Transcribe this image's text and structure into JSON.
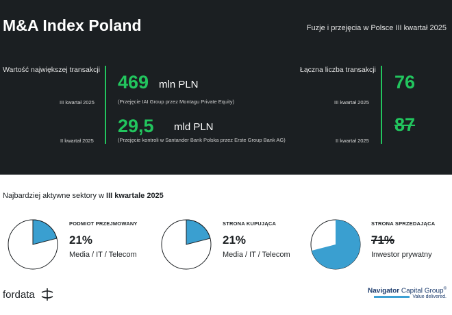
{
  "header": {
    "title": "M&A Index Poland",
    "subtitle": "Fuzje i przejęcia w Polsce III kwartał 2025"
  },
  "largest_transaction": {
    "label": "Wartość największej transakcji",
    "rows": [
      {
        "period": "III kwartał 2025",
        "value": "469",
        "unit": "mln PLN",
        "note": "(Przejęcie IAI Group przez Montagu Private Equity)"
      },
      {
        "period": "II kwartał 2025",
        "value": "29,5",
        "unit": "mld PLN",
        "note": "(Przejęcie kontroli w Santander Bank Polska przez Erste Group Bank AG)"
      }
    ]
  },
  "transaction_count": {
    "label": "Łączna liczba transakcji",
    "rows": [
      {
        "period": "III kwartał 2025",
        "value": "76"
      },
      {
        "period": "II kwartał 2025",
        "value": "87"
      }
    ]
  },
  "sectors": {
    "title_prefix": "Najbardziej aktywne sektory w ",
    "title_bold": "III kwartale 2025",
    "items": [
      {
        "label": "PODMIOT PRZEJMOWANY",
        "percent": "21%",
        "share": 0.21,
        "sector": "Media / IT / Telecom",
        "accent": "#3a9fd0"
      },
      {
        "label": "STRONA KUPUJĄCA",
        "percent": "21%",
        "share": 0.21,
        "sector": "Media / IT / Telecom",
        "accent": "#3a9fd0"
      },
      {
        "label": "STRONA SPRZEDAJĄCA",
        "percent": "71%",
        "share": 0.71,
        "sector": "Inwestor prywatny",
        "accent": "#3a9fd0"
      }
    ]
  },
  "footer": {
    "fordata": "fordata",
    "navigator_bold": "Navigator",
    "navigator_rest": " Capital Group",
    "navigator_mark": "®",
    "navigator_tagline": "Value delivered."
  },
  "colors": {
    "dark_bg": "#1b1f22",
    "green": "#22c55e",
    "blue": "#3a9fd0",
    "navy": "#1a3a6c"
  }
}
